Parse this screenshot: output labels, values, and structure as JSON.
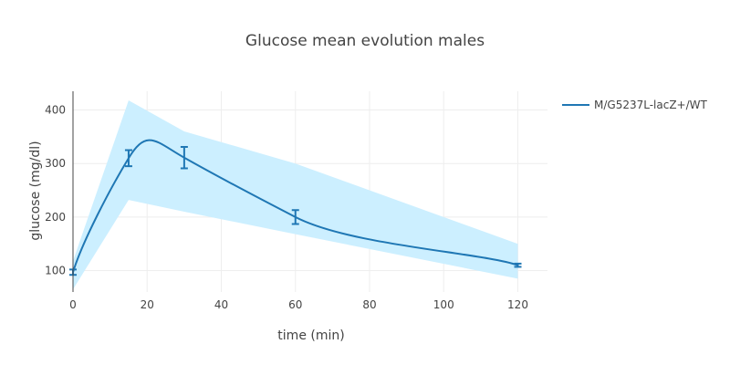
{
  "chart_data": {
    "type": "line",
    "title": "Glucose mean evolution males",
    "xlabel": "time (min)",
    "ylabel": "glucose (mg/dl)",
    "xlim": [
      0,
      128
    ],
    "ylim": [
      60,
      435
    ],
    "xticks": [
      0,
      20,
      40,
      60,
      80,
      100,
      120
    ],
    "yticks": [
      100,
      200,
      300,
      400
    ],
    "grid": true,
    "legend_position": "top-right",
    "series": [
      {
        "name": "M/G5237L-lacZ+/WT",
        "color": "#1f77b4",
        "x": [
          0,
          15,
          30,
          60,
          120
        ],
        "y": [
          97,
          310,
          311,
          200,
          110
        ],
        "error": [
          5,
          15,
          20,
          13,
          3
        ],
        "band_upper": [
          118,
          418,
          360,
          300,
          150
        ],
        "band_lower": [
          65,
          232,
          210,
          168,
          85
        ],
        "band_color": "#ccefff"
      }
    ]
  }
}
